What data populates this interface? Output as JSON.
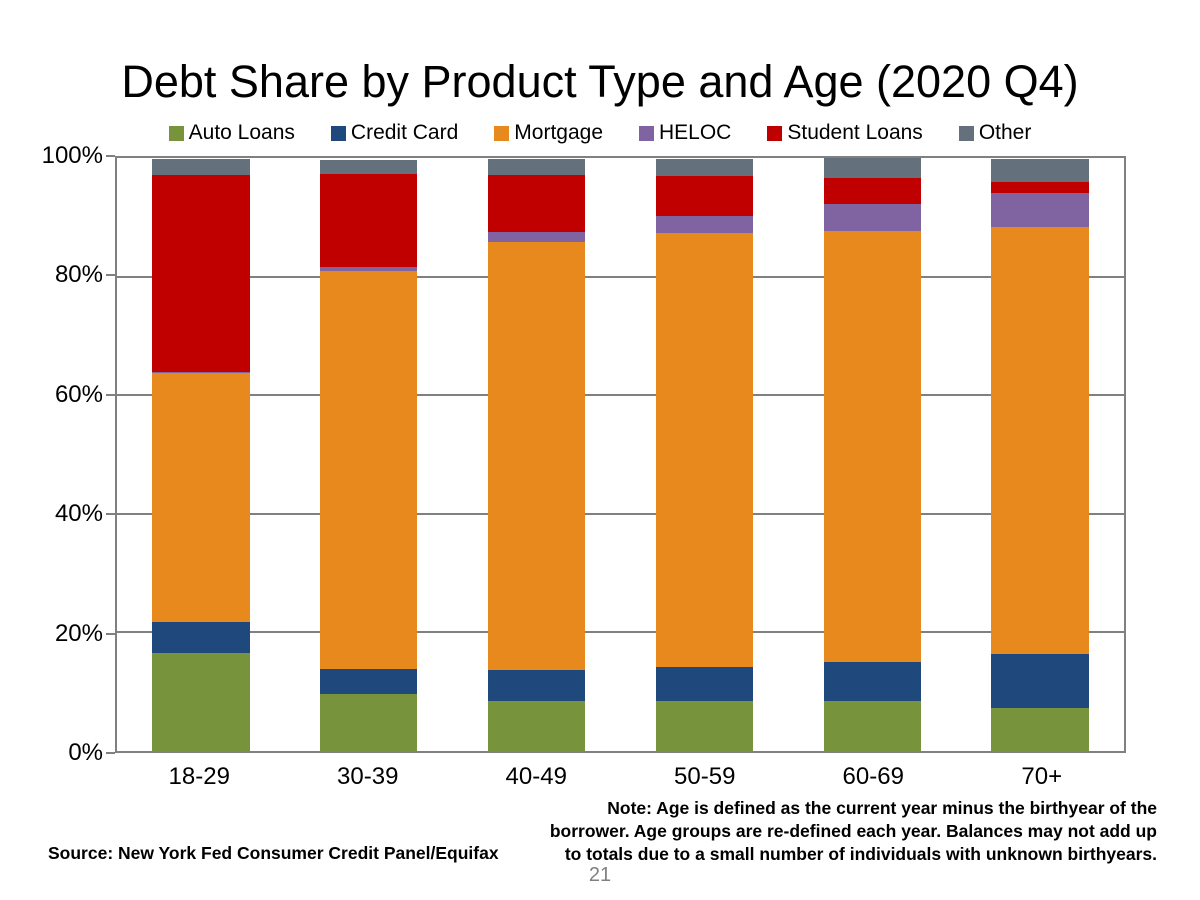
{
  "slide": {
    "title": "Debt Share by Product Type and Age (2020 Q4)",
    "source": "Source: New York Fed Consumer Credit Panel/Equifax",
    "note_lines": [
      "Note: Age is defined as the current year minus the birthyear of the",
      "borrower. Age groups are re-defined each year. Balances may not add up",
      "to totals due to a small number of individuals with unknown birthyears."
    ],
    "page_number": "21"
  },
  "chart_data": {
    "type": "bar",
    "stacked": true,
    "percent_stacked": true,
    "title": "Debt Share by Product Type and Age (2020 Q4)",
    "xlabel": "",
    "ylabel": "",
    "ylim": [
      0,
      100
    ],
    "grid": true,
    "legend_position": "top",
    "y_ticks": [
      {
        "label": "0%",
        "value": 0
      },
      {
        "label": "20%",
        "value": 20
      },
      {
        "label": "40%",
        "value": 40
      },
      {
        "label": "60%",
        "value": 60
      },
      {
        "label": "80%",
        "value": 80
      },
      {
        "label": "100%",
        "value": 100
      }
    ],
    "categories": [
      "18-29",
      "30-39",
      "40-49",
      "50-59",
      "60-69",
      "70+"
    ],
    "series": [
      {
        "name": "Auto Loans",
        "color": "#77933C",
        "values": [
          16.6,
          9.6,
          8.5,
          8.5,
          8.5,
          7.3
        ]
      },
      {
        "name": "Credit Card",
        "color": "#1F497D",
        "values": [
          5.1,
          4.2,
          5.2,
          5.6,
          6.5,
          9.0
        ]
      },
      {
        "name": "Mortgage",
        "color": "#E8891E",
        "values": [
          42.1,
          67.1,
          72.2,
          73.2,
          72.7,
          72.0
        ]
      },
      {
        "name": "HELOC",
        "color": "#8064A2",
        "values": [
          0.2,
          0.7,
          1.7,
          3.0,
          4.5,
          5.8
        ]
      },
      {
        "name": "Student Loans",
        "color": "#C00000",
        "values": [
          33.1,
          15.7,
          9.6,
          6.6,
          4.4,
          1.9
        ]
      },
      {
        "name": "Other",
        "color": "#64707B",
        "values": [
          2.8,
          2.3,
          2.7,
          3.0,
          3.4,
          3.9
        ]
      }
    ]
  }
}
